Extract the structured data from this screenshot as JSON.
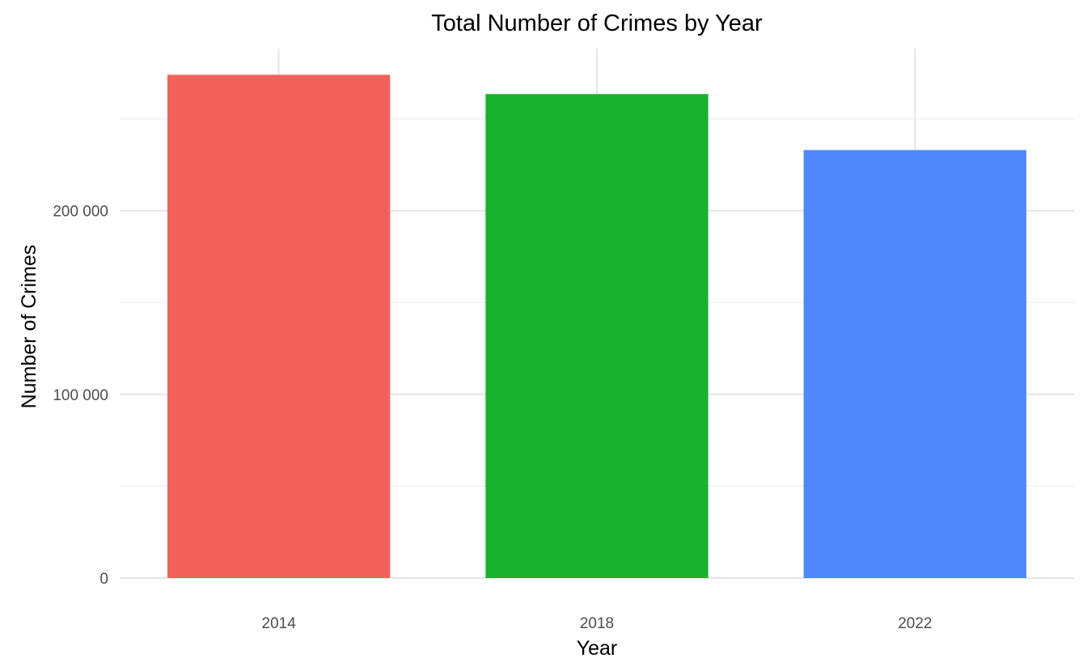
{
  "chart_data": {
    "type": "bar",
    "title": "Total Number of Crimes by Year",
    "xlabel": "Year",
    "ylabel": "Number of Crimes",
    "categories": [
      "2014",
      "2018",
      "2022"
    ],
    "values": [
      274000,
      263500,
      233000
    ],
    "colors": [
      "#F2615B",
      "#1AB12F",
      "#5087FD"
    ],
    "ylim": [
      0,
      288000
    ],
    "yticks": [
      0,
      100000,
      200000
    ],
    "ytick_labels": [
      "0",
      "100 000",
      "200 000"
    ],
    "minor_gridlines": [
      50000,
      150000,
      250000
    ],
    "grid": true,
    "legend": "none"
  }
}
